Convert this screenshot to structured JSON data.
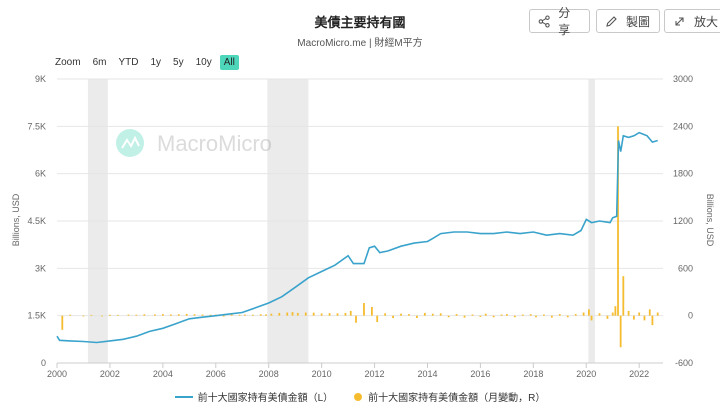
{
  "header": {
    "title": "美債主要持有國",
    "subtitle": "MacroMicro.me | 財經M平方"
  },
  "toolbar": {
    "share_label": "分享",
    "draw_label": "製圖",
    "expand_label": "放大",
    "share_icon": "share-icon",
    "draw_icon": "pencil-icon",
    "expand_icon": "expand-icon"
  },
  "zoom": {
    "label": "Zoom",
    "options": [
      "6m",
      "YTD",
      "1y",
      "5y",
      "10y",
      "All"
    ],
    "selected": "All"
  },
  "watermark": "MacroMicro",
  "colors": {
    "line": "#3aa3cc",
    "bar": "#f5bc30",
    "band": "#ebebeb",
    "zoom_active": "#4dd6b9"
  },
  "chart_data": {
    "type": "line+bar",
    "title": "美債主要持有國",
    "xlabel": "",
    "ylabel_left": "Billions, USD",
    "ylabel_right": "Billions, USD",
    "x_ticks": [
      "2000",
      "2002",
      "2004",
      "2006",
      "2008",
      "2010",
      "2012",
      "2014",
      "2016",
      "2018",
      "2020",
      "2022"
    ],
    "y_left_ticks": [
      "0",
      "1.5K",
      "3K",
      "4.5K",
      "6K",
      "7.5K",
      "9K"
    ],
    "y_right_ticks": [
      "-600",
      "0",
      "600",
      "1200",
      "1800",
      "2400",
      "3000"
    ],
    "ylim_left": [
      0,
      9000
    ],
    "ylim_right": [
      -600,
      3000
    ],
    "xlim": [
      2000.0,
      2022.9
    ],
    "recession_bands": [
      [
        2001.17,
        2001.92
      ],
      [
        2007.95,
        2009.5
      ],
      [
        2020.08,
        2020.33
      ]
    ],
    "series": [
      {
        "name": "前十大國家持有美債金額（L）",
        "axis": "left",
        "type": "line",
        "points": [
          [
            2000.0,
            850
          ],
          [
            2000.1,
            720
          ],
          [
            2000.5,
            700
          ],
          [
            2001.0,
            680
          ],
          [
            2001.5,
            650
          ],
          [
            2002.0,
            700
          ],
          [
            2002.5,
            750
          ],
          [
            2003.0,
            850
          ],
          [
            2003.5,
            1000
          ],
          [
            2004.0,
            1100
          ],
          [
            2004.5,
            1250
          ],
          [
            2005.0,
            1400
          ],
          [
            2005.5,
            1450
          ],
          [
            2006.0,
            1500
          ],
          [
            2006.5,
            1550
          ],
          [
            2007.0,
            1600
          ],
          [
            2007.5,
            1750
          ],
          [
            2008.0,
            1900
          ],
          [
            2008.5,
            2100
          ],
          [
            2009.0,
            2400
          ],
          [
            2009.5,
            2700
          ],
          [
            2010.0,
            2900
          ],
          [
            2010.5,
            3100
          ],
          [
            2011.0,
            3400
          ],
          [
            2011.2,
            3150
          ],
          [
            2011.6,
            3150
          ],
          [
            2011.8,
            3650
          ],
          [
            2012.0,
            3700
          ],
          [
            2012.2,
            3500
          ],
          [
            2012.5,
            3550
          ],
          [
            2013.0,
            3700
          ],
          [
            2013.5,
            3800
          ],
          [
            2014.0,
            3850
          ],
          [
            2014.2,
            3950
          ],
          [
            2014.5,
            4100
          ],
          [
            2015.0,
            4150
          ],
          [
            2015.5,
            4150
          ],
          [
            2016.0,
            4100
          ],
          [
            2016.5,
            4100
          ],
          [
            2017.0,
            4150
          ],
          [
            2017.5,
            4100
          ],
          [
            2018.0,
            4150
          ],
          [
            2018.5,
            4050
          ],
          [
            2019.0,
            4100
          ],
          [
            2019.5,
            4050
          ],
          [
            2019.8,
            4200
          ],
          [
            2020.0,
            4550
          ],
          [
            2020.2,
            4450
          ],
          [
            2020.5,
            4500
          ],
          [
            2020.9,
            4450
          ],
          [
            2021.0,
            4600
          ],
          [
            2021.15,
            4650
          ],
          [
            2021.22,
            7050
          ],
          [
            2021.3,
            6700
          ],
          [
            2021.4,
            7200
          ],
          [
            2021.6,
            7150
          ],
          [
            2021.8,
            7200
          ],
          [
            2022.0,
            7300
          ],
          [
            2022.3,
            7200
          ],
          [
            2022.5,
            7000
          ],
          [
            2022.7,
            7050
          ]
        ]
      },
      {
        "name": "前十大國家持有美債金額（月變動，R）",
        "axis": "right",
        "type": "bar",
        "points": [
          [
            2000.2,
            -180
          ],
          [
            2000.5,
            12
          ],
          [
            2001.0,
            -10
          ],
          [
            2001.3,
            10
          ],
          [
            2001.7,
            -8
          ],
          [
            2002.0,
            12
          ],
          [
            2002.3,
            10
          ],
          [
            2002.7,
            14
          ],
          [
            2003.0,
            12
          ],
          [
            2003.3,
            18
          ],
          [
            2003.7,
            16
          ],
          [
            2004.0,
            20
          ],
          [
            2004.3,
            16
          ],
          [
            2004.6,
            18
          ],
          [
            2004.9,
            22
          ],
          [
            2005.2,
            18
          ],
          [
            2005.5,
            15
          ],
          [
            2005.8,
            12
          ],
          [
            2006.0,
            14
          ],
          [
            2006.3,
            -12
          ],
          [
            2006.6,
            16
          ],
          [
            2006.9,
            12
          ],
          [
            2007.1,
            14
          ],
          [
            2007.4,
            12
          ],
          [
            2007.7,
            18
          ],
          [
            2007.9,
            16
          ],
          [
            2008.1,
            25
          ],
          [
            2008.4,
            35
          ],
          [
            2008.7,
            40
          ],
          [
            2008.9,
            45
          ],
          [
            2009.1,
            35
          ],
          [
            2009.4,
            40
          ],
          [
            2009.7,
            38
          ],
          [
            2010.0,
            28
          ],
          [
            2010.3,
            32
          ],
          [
            2010.6,
            30
          ],
          [
            2010.9,
            35
          ],
          [
            2011.1,
            60
          ],
          [
            2011.3,
            -90
          ],
          [
            2011.6,
            160
          ],
          [
            2011.9,
            110
          ],
          [
            2012.1,
            -80
          ],
          [
            2012.4,
            30
          ],
          [
            2012.7,
            -30
          ],
          [
            2013.0,
            25
          ],
          [
            2013.3,
            20
          ],
          [
            2013.6,
            -30
          ],
          [
            2013.9,
            35
          ],
          [
            2014.2,
            25
          ],
          [
            2014.5,
            30
          ],
          [
            2014.8,
            -20
          ],
          [
            2015.1,
            20
          ],
          [
            2015.4,
            -25
          ],
          [
            2015.7,
            15
          ],
          [
            2016.0,
            -15
          ],
          [
            2016.2,
            25
          ],
          [
            2016.5,
            -20
          ],
          [
            2016.8,
            15
          ],
          [
            2017.0,
            20
          ],
          [
            2017.3,
            -20
          ],
          [
            2017.6,
            15
          ],
          [
            2017.9,
            18
          ],
          [
            2018.1,
            -20
          ],
          [
            2018.4,
            15
          ],
          [
            2018.7,
            -25
          ],
          [
            2019.0,
            20
          ],
          [
            2019.3,
            -20
          ],
          [
            2019.6,
            20
          ],
          [
            2019.9,
            40
          ],
          [
            2020.1,
            80
          ],
          [
            2020.2,
            -60
          ],
          [
            2020.5,
            30
          ],
          [
            2020.8,
            -40
          ],
          [
            2021.0,
            40
          ],
          [
            2021.1,
            120
          ],
          [
            2021.2,
            2400
          ],
          [
            2021.3,
            -400
          ],
          [
            2021.4,
            500
          ],
          [
            2021.6,
            60
          ],
          [
            2021.8,
            -50
          ],
          [
            2022.0,
            40
          ],
          [
            2022.2,
            -60
          ],
          [
            2022.4,
            80
          ],
          [
            2022.5,
            -120
          ],
          [
            2022.7,
            40
          ]
        ]
      }
    ],
    "legend_position": "bottom",
    "grid": true
  }
}
